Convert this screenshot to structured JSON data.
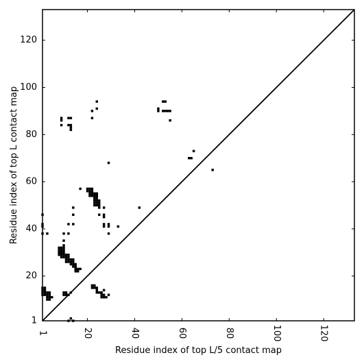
{
  "chart_data": {
    "type": "scatter",
    "title": "",
    "xlabel": "Residue index of top L/5 contact map",
    "ylabel": "Residue index of top L contact map",
    "xlim": [
      1,
      133
    ],
    "ylim": [
      1,
      133
    ],
    "xticks": [
      1,
      20,
      40,
      60,
      80,
      100,
      120
    ],
    "yticks": [
      1,
      20,
      40,
      60,
      80,
      100,
      120
    ],
    "grid": false,
    "legend": "none",
    "diagonal": true,
    "marker_color": "#000000",
    "points_upper": [
      [
        9,
        84
      ],
      [
        9,
        86
      ],
      [
        9,
        87
      ],
      [
        12,
        84
      ],
      [
        12,
        87
      ],
      [
        13,
        82
      ],
      [
        13,
        83
      ],
      [
        13,
        84
      ],
      [
        13,
        87
      ],
      [
        22,
        87
      ],
      [
        22,
        90
      ],
      [
        24,
        91
      ],
      [
        24,
        94
      ],
      [
        29,
        68
      ],
      [
        42,
        49
      ],
      [
        50,
        90
      ],
      [
        50,
        91
      ],
      [
        52,
        90
      ],
      [
        52,
        94
      ],
      [
        53,
        90
      ],
      [
        53,
        94
      ],
      [
        54,
        90
      ],
      [
        55,
        86
      ],
      [
        55,
        90
      ],
      [
        63,
        70
      ],
      [
        64,
        70
      ],
      [
        65,
        73
      ],
      [
        73,
        65
      ]
    ],
    "points_lower": [
      [
        1,
        12
      ],
      [
        1,
        13
      ],
      [
        1,
        14
      ],
      [
        1,
        15
      ],
      [
        2,
        12
      ],
      [
        2,
        13
      ],
      [
        2,
        14
      ],
      [
        2,
        15
      ],
      [
        3,
        10
      ],
      [
        3,
        11
      ],
      [
        3,
        12
      ],
      [
        3,
        13
      ],
      [
        4,
        10
      ],
      [
        4,
        11
      ],
      [
        4,
        12
      ],
      [
        4,
        13
      ],
      [
        5,
        11
      ],
      [
        1,
        38
      ],
      [
        1,
        41
      ],
      [
        1,
        42
      ],
      [
        1,
        46
      ],
      [
        3,
        38
      ],
      [
        8,
        29
      ],
      [
        8,
        30
      ],
      [
        8,
        31
      ],
      [
        8,
        32
      ],
      [
        9,
        28
      ],
      [
        9,
        29
      ],
      [
        9,
        30
      ],
      [
        9,
        31
      ],
      [
        9,
        32
      ],
      [
        10,
        28
      ],
      [
        10,
        29
      ],
      [
        10,
        30
      ],
      [
        10,
        31
      ],
      [
        10,
        32
      ],
      [
        10,
        33
      ],
      [
        10,
        35
      ],
      [
        10,
        38
      ],
      [
        11,
        26
      ],
      [
        11,
        27
      ],
      [
        11,
        28
      ],
      [
        11,
        29
      ],
      [
        12,
        26
      ],
      [
        12,
        27
      ],
      [
        12,
        28
      ],
      [
        12,
        29
      ],
      [
        12,
        38
      ],
      [
        12,
        42
      ],
      [
        13,
        25
      ],
      [
        13,
        26
      ],
      [
        13,
        27
      ],
      [
        14,
        24
      ],
      [
        14,
        25
      ],
      [
        14,
        26
      ],
      [
        14,
        27
      ],
      [
        14,
        42
      ],
      [
        14,
        46
      ],
      [
        14,
        49
      ],
      [
        15,
        22
      ],
      [
        15,
        23
      ],
      [
        15,
        24
      ],
      [
        15,
        25
      ],
      [
        16,
        22
      ],
      [
        16,
        23
      ],
      [
        17,
        23
      ],
      [
        17,
        57
      ],
      [
        10,
        12
      ],
      [
        10,
        13
      ],
      [
        11,
        12
      ],
      [
        11,
        13
      ],
      [
        12,
        1
      ],
      [
        12,
        12
      ],
      [
        13,
        2
      ],
      [
        13,
        13
      ],
      [
        14,
        1
      ],
      [
        20,
        56
      ],
      [
        20,
        57
      ],
      [
        21,
        54
      ],
      [
        21,
        55
      ],
      [
        21,
        56
      ],
      [
        21,
        57
      ],
      [
        22,
        54
      ],
      [
        22,
        55
      ],
      [
        22,
        56
      ],
      [
        22,
        57
      ],
      [
        22,
        15
      ],
      [
        22,
        16
      ],
      [
        23,
        15
      ],
      [
        23,
        16
      ],
      [
        23,
        50
      ],
      [
        23,
        51
      ],
      [
        23,
        52
      ],
      [
        23,
        53
      ],
      [
        23,
        54
      ],
      [
        23,
        55
      ],
      [
        24,
        13
      ],
      [
        24,
        14
      ],
      [
        24,
        15
      ],
      [
        24,
        50
      ],
      [
        24,
        51
      ],
      [
        24,
        52
      ],
      [
        24,
        53
      ],
      [
        24,
        54
      ],
      [
        24,
        55
      ],
      [
        25,
        13
      ],
      [
        25,
        46
      ],
      [
        25,
        49
      ],
      [
        25,
        50
      ],
      [
        25,
        51
      ],
      [
        25,
        52
      ],
      [
        26,
        11
      ],
      [
        26,
        12
      ],
      [
        26,
        13
      ],
      [
        27,
        11
      ],
      [
        27,
        12
      ],
      [
        27,
        14
      ],
      [
        27,
        41
      ],
      [
        27,
        42
      ],
      [
        27,
        45
      ],
      [
        27,
        46
      ],
      [
        27,
        49
      ],
      [
        28,
        11
      ],
      [
        29,
        12
      ],
      [
        29,
        38
      ],
      [
        29,
        41
      ],
      [
        29,
        42
      ],
      [
        33,
        41
      ]
    ]
  }
}
